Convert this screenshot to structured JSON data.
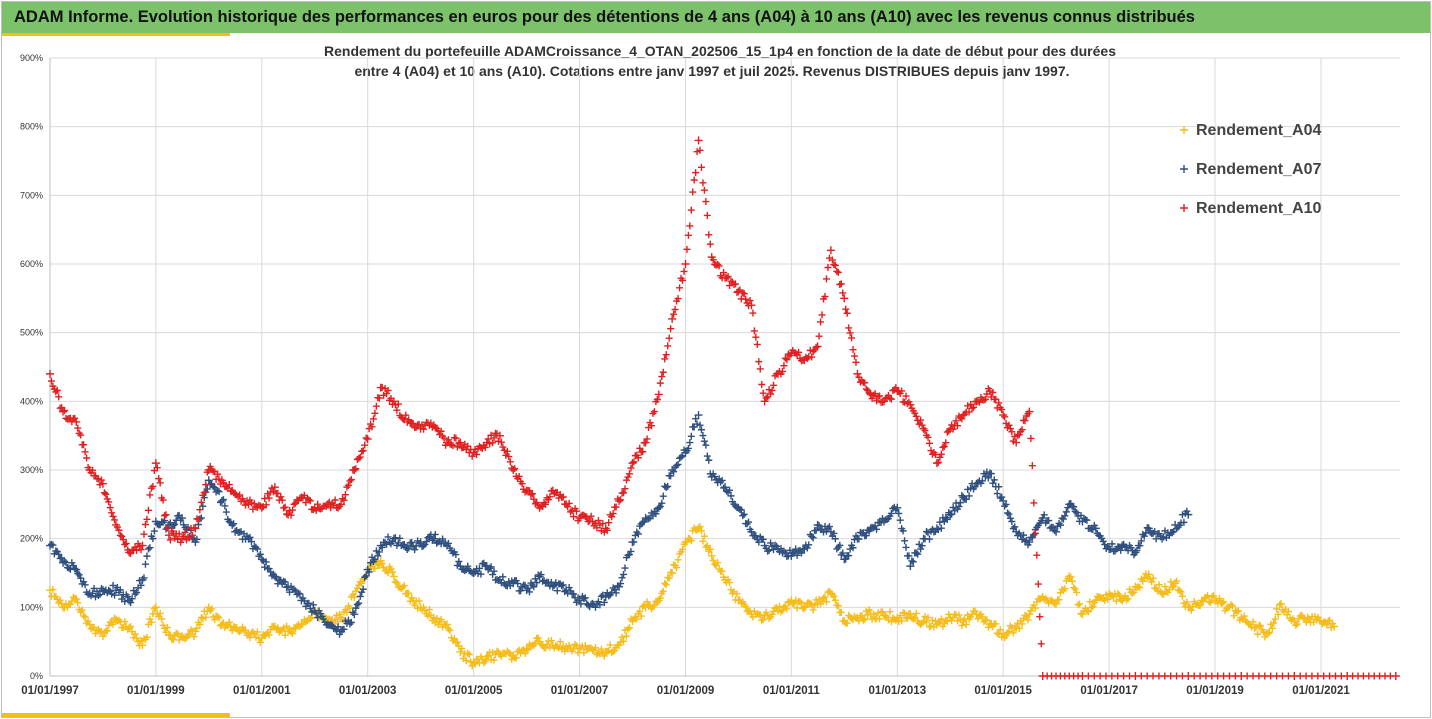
{
  "header": {
    "title": "ADAM Informe. Evolution historique des performances en euros pour des détentions de 4 ans (A04) à 10 ans (A10) avec les revenus connus distribués"
  },
  "colors": {
    "banner": "#7cc26b",
    "accent": "#f5bc1a",
    "A04": "#f5bc1a",
    "A07": "#2f4f7f",
    "A10": "#e02020"
  },
  "chart_data": {
    "type": "scatter",
    "title_line1": "Rendement du portefeuille ADAMCroissance_4_OTAN_202506_15_1p4  en fonction de la date de début pour des durées",
    "title_line2": "entre 4 (A04) et 10 ans (A10). Cotations entre janv 1997 et juil 2025. Revenus DISTRIBUES depuis janv 1997.",
    "ylim": [
      0,
      900
    ],
    "xlim": [
      "1997-01-01",
      "2022-06-30"
    ],
    "grid": true,
    "legend_position": "top-right",
    "y_ticks": [
      "0%",
      "100%",
      "200%",
      "300%",
      "400%",
      "500%",
      "600%",
      "700%",
      "800%",
      "900%"
    ],
    "x_ticks": [
      "01/01/1997",
      "01/01/1999",
      "01/01/2001",
      "01/01/2003",
      "01/01/2005",
      "01/01/2007",
      "01/01/2009",
      "01/01/2011",
      "01/01/2013",
      "01/01/2015",
      "01/01/2017",
      "01/01/2019",
      "01/01/2021"
    ],
    "series": [
      {
        "name": "Rendement_A04",
        "color": "#f5bc1a",
        "points": [
          [
            "1997-01-01",
            125
          ],
          [
            "1997-04-01",
            100
          ],
          [
            "1997-07-01",
            112
          ],
          [
            "1997-10-01",
            75
          ],
          [
            "1998-01-01",
            58
          ],
          [
            "1998-04-01",
            82
          ],
          [
            "1998-07-01",
            70
          ],
          [
            "1998-10-01",
            45
          ],
          [
            "1999-01-01",
            100
          ],
          [
            "1999-04-01",
            60
          ],
          [
            "1999-07-01",
            58
          ],
          [
            "1999-10-01",
            65
          ],
          [
            "2000-01-01",
            100
          ],
          [
            "2000-04-01",
            75
          ],
          [
            "2000-07-01",
            70
          ],
          [
            "2000-10-01",
            62
          ],
          [
            "2001-01-01",
            55
          ],
          [
            "2001-04-01",
            72
          ],
          [
            "2001-07-01",
            65
          ],
          [
            "2001-10-01",
            75
          ],
          [
            "2002-01-01",
            95
          ],
          [
            "2002-04-01",
            78
          ],
          [
            "2002-07-01",
            85
          ],
          [
            "2002-10-01",
            115
          ],
          [
            "2003-01-01",
            155
          ],
          [
            "2003-04-01",
            168
          ],
          [
            "2003-07-01",
            145
          ],
          [
            "2003-10-01",
            120
          ],
          [
            "2004-01-01",
            100
          ],
          [
            "2004-04-01",
            85
          ],
          [
            "2004-07-01",
            75
          ],
          [
            "2004-10-01",
            35
          ],
          [
            "2005-01-01",
            20
          ],
          [
            "2005-04-01",
            28
          ],
          [
            "2005-07-01",
            32
          ],
          [
            "2005-10-01",
            30
          ],
          [
            "2006-01-01",
            40
          ],
          [
            "2006-04-01",
            50
          ],
          [
            "2006-07-01",
            45
          ],
          [
            "2006-10-01",
            42
          ],
          [
            "2007-01-01",
            40
          ],
          [
            "2007-04-01",
            38
          ],
          [
            "2007-07-01",
            35
          ],
          [
            "2007-10-01",
            45
          ],
          [
            "2008-01-01",
            80
          ],
          [
            "2008-04-01",
            100
          ],
          [
            "2008-07-01",
            110
          ],
          [
            "2008-10-01",
            150
          ],
          [
            "2009-01-01",
            195
          ],
          [
            "2009-04-01",
            215
          ],
          [
            "2009-07-01",
            175
          ],
          [
            "2009-10-01",
            140
          ],
          [
            "2010-01-01",
            110
          ],
          [
            "2010-04-01",
            90
          ],
          [
            "2010-07-01",
            88
          ],
          [
            "2010-10-01",
            95
          ],
          [
            "2011-01-01",
            110
          ],
          [
            "2011-04-01",
            100
          ],
          [
            "2011-07-01",
            105
          ],
          [
            "2011-10-01",
            120
          ],
          [
            "2012-01-01",
            80
          ],
          [
            "2012-04-01",
            85
          ],
          [
            "2012-07-01",
            90
          ],
          [
            "2012-10-01",
            88
          ],
          [
            "2013-01-01",
            85
          ],
          [
            "2013-04-01",
            90
          ],
          [
            "2013-07-01",
            80
          ],
          [
            "2013-10-01",
            75
          ],
          [
            "2014-01-01",
            85
          ],
          [
            "2014-04-01",
            80
          ],
          [
            "2014-07-01",
            90
          ],
          [
            "2014-10-01",
            75
          ],
          [
            "2015-01-01",
            62
          ],
          [
            "2015-04-01",
            70
          ],
          [
            "2015-07-01",
            90
          ],
          [
            "2015-10-01",
            115
          ],
          [
            "2016-01-01",
            105
          ],
          [
            "2016-04-01",
            145
          ],
          [
            "2016-07-01",
            90
          ],
          [
            "2016-10-01",
            110
          ],
          [
            "2017-01-01",
            120
          ],
          [
            "2017-04-01",
            110
          ],
          [
            "2017-07-01",
            130
          ],
          [
            "2017-10-01",
            148
          ],
          [
            "2018-01-01",
            120
          ],
          [
            "2018-04-01",
            135
          ],
          [
            "2018-07-01",
            100
          ],
          [
            "2018-10-01",
            110
          ],
          [
            "2019-01-01",
            110
          ],
          [
            "2019-04-01",
            100
          ],
          [
            "2019-07-01",
            85
          ],
          [
            "2019-10-01",
            70
          ],
          [
            "2020-01-01",
            62
          ],
          [
            "2020-04-01",
            105
          ],
          [
            "2020-07-01",
            80
          ],
          [
            "2020-10-01",
            85
          ],
          [
            "2021-01-01",
            80
          ],
          [
            "2021-04-01",
            72
          ]
        ]
      },
      {
        "name": "Rendement_A07",
        "color": "#2f4f7f",
        "points": [
          [
            "1997-01-01",
            190
          ],
          [
            "1997-04-01",
            165
          ],
          [
            "1997-07-01",
            155
          ],
          [
            "1997-10-01",
            120
          ],
          [
            "1998-01-01",
            125
          ],
          [
            "1998-04-01",
            125
          ],
          [
            "1998-07-01",
            110
          ],
          [
            "1998-10-01",
            140
          ],
          [
            "1999-01-01",
            225
          ],
          [
            "1999-04-01",
            220
          ],
          [
            "1999-07-01",
            230
          ],
          [
            "1999-10-01",
            195
          ],
          [
            "2000-01-01",
            285
          ],
          [
            "2000-04-01",
            255
          ],
          [
            "2000-07-01",
            210
          ],
          [
            "2000-10-01",
            200
          ],
          [
            "2001-01-01",
            170
          ],
          [
            "2001-04-01",
            145
          ],
          [
            "2001-07-01",
            130
          ],
          [
            "2001-10-01",
            110
          ],
          [
            "2002-01-01",
            95
          ],
          [
            "2002-04-01",
            75
          ],
          [
            "2002-07-01",
            65
          ],
          [
            "2002-10-01",
            90
          ],
          [
            "2003-01-01",
            155
          ],
          [
            "2003-04-01",
            190
          ],
          [
            "2003-07-01",
            200
          ],
          [
            "2003-10-01",
            185
          ],
          [
            "2004-01-01",
            195
          ],
          [
            "2004-04-01",
            200
          ],
          [
            "2004-07-01",
            190
          ],
          [
            "2004-10-01",
            160
          ],
          [
            "2005-01-01",
            150
          ],
          [
            "2005-04-01",
            160
          ],
          [
            "2005-07-01",
            140
          ],
          [
            "2005-10-01",
            135
          ],
          [
            "2006-01-01",
            125
          ],
          [
            "2006-04-01",
            145
          ],
          [
            "2006-07-01",
            130
          ],
          [
            "2006-10-01",
            125
          ],
          [
            "2007-01-01",
            110
          ],
          [
            "2007-04-01",
            105
          ],
          [
            "2007-07-01",
            115
          ],
          [
            "2007-10-01",
            130
          ],
          [
            "2008-01-01",
            195
          ],
          [
            "2008-04-01",
            230
          ],
          [
            "2008-07-01",
            245
          ],
          [
            "2008-10-01",
            300
          ],
          [
            "2009-01-01",
            325
          ],
          [
            "2009-04-01",
            380
          ],
          [
            "2009-07-01",
            290
          ],
          [
            "2009-10-01",
            275
          ],
          [
            "2010-01-01",
            245
          ],
          [
            "2010-04-01",
            210
          ],
          [
            "2010-07-01",
            190
          ],
          [
            "2010-10-01",
            185
          ],
          [
            "2011-01-01",
            175
          ],
          [
            "2011-04-01",
            185
          ],
          [
            "2011-07-01",
            220
          ],
          [
            "2011-10-01",
            210
          ],
          [
            "2012-01-01",
            170
          ],
          [
            "2012-04-01",
            200
          ],
          [
            "2012-07-01",
            215
          ],
          [
            "2012-10-01",
            225
          ],
          [
            "2013-01-01",
            245
          ],
          [
            "2013-04-01",
            160
          ],
          [
            "2013-07-01",
            200
          ],
          [
            "2013-10-01",
            215
          ],
          [
            "2014-01-01",
            235
          ],
          [
            "2014-04-01",
            260
          ],
          [
            "2014-07-01",
            280
          ],
          [
            "2014-10-01",
            295
          ],
          [
            "2015-01-01",
            255
          ],
          [
            "2015-04-01",
            210
          ],
          [
            "2015-07-01",
            195
          ],
          [
            "2015-10-01",
            230
          ],
          [
            "2016-01-01",
            210
          ],
          [
            "2016-04-01",
            250
          ],
          [
            "2016-07-01",
            225
          ],
          [
            "2016-10-01",
            215
          ],
          [
            "2017-01-01",
            185
          ],
          [
            "2017-04-01",
            190
          ],
          [
            "2017-07-01",
            180
          ],
          [
            "2017-10-01",
            215
          ],
          [
            "2018-01-01",
            200
          ],
          [
            "2018-04-01",
            220
          ],
          [
            "2018-07-01",
            235
          ]
        ]
      },
      {
        "name": "Rendement_A10",
        "color": "#e02020",
        "points": [
          [
            "1997-01-01",
            440
          ],
          [
            "1997-04-01",
            385
          ],
          [
            "1997-07-01",
            370
          ],
          [
            "1997-10-01",
            300
          ],
          [
            "1998-01-01",
            280
          ],
          [
            "1998-04-01",
            220
          ],
          [
            "1998-07-01",
            180
          ],
          [
            "1998-10-01",
            190
          ],
          [
            "1999-01-01",
            310
          ],
          [
            "1999-04-01",
            205
          ],
          [
            "1999-07-01",
            200
          ],
          [
            "1999-10-01",
            215
          ],
          [
            "2000-01-01",
            300
          ],
          [
            "2000-04-01",
            285
          ],
          [
            "2000-07-01",
            265
          ],
          [
            "2000-10-01",
            250
          ],
          [
            "2001-01-01",
            245
          ],
          [
            "2001-04-01",
            275
          ],
          [
            "2001-07-01",
            235
          ],
          [
            "2001-10-01",
            260
          ],
          [
            "2002-01-01",
            245
          ],
          [
            "2002-04-01",
            250
          ],
          [
            "2002-07-01",
            250
          ],
          [
            "2002-10-01",
            300
          ],
          [
            "2003-01-01",
            345
          ],
          [
            "2003-04-01",
            420
          ],
          [
            "2003-07-01",
            400
          ],
          [
            "2003-10-01",
            370
          ],
          [
            "2004-01-01",
            360
          ],
          [
            "2004-04-01",
            365
          ],
          [
            "2004-07-01",
            340
          ],
          [
            "2004-10-01",
            340
          ],
          [
            "2005-01-01",
            325
          ],
          [
            "2005-04-01",
            340
          ],
          [
            "2005-07-01",
            350
          ],
          [
            "2005-10-01",
            300
          ],
          [
            "2006-01-01",
            270
          ],
          [
            "2006-04-01",
            245
          ],
          [
            "2006-07-01",
            270
          ],
          [
            "2006-10-01",
            250
          ],
          [
            "2007-01-01",
            230
          ],
          [
            "2007-04-01",
            225
          ],
          [
            "2007-07-01",
            215
          ],
          [
            "2007-10-01",
            255
          ],
          [
            "2008-01-01",
            310
          ],
          [
            "2008-04-01",
            340
          ],
          [
            "2008-07-01",
            410
          ],
          [
            "2008-10-01",
            520
          ],
          [
            "2009-01-01",
            600
          ],
          [
            "2009-04-01",
            780
          ],
          [
            "2009-07-01",
            610
          ],
          [
            "2009-10-01",
            580
          ],
          [
            "2010-01-01",
            560
          ],
          [
            "2010-04-01",
            540
          ],
          [
            "2010-07-01",
            400
          ],
          [
            "2010-10-01",
            440
          ],
          [
            "2011-01-01",
            470
          ],
          [
            "2011-04-01",
            460
          ],
          [
            "2011-07-01",
            480
          ],
          [
            "2011-10-01",
            620
          ],
          [
            "2012-01-01",
            550
          ],
          [
            "2012-04-01",
            440
          ],
          [
            "2012-07-01",
            410
          ],
          [
            "2012-10-01",
            400
          ],
          [
            "2013-01-01",
            415
          ],
          [
            "2013-04-01",
            395
          ],
          [
            "2013-07-01",
            360
          ],
          [
            "2013-10-01",
            310
          ],
          [
            "2014-01-01",
            360
          ],
          [
            "2014-04-01",
            380
          ],
          [
            "2014-07-01",
            400
          ],
          [
            "2014-10-01",
            415
          ],
          [
            "2015-01-01",
            380
          ],
          [
            "2015-04-01",
            340
          ],
          [
            "2015-07-01",
            385
          ],
          [
            "2015-10-01",
            0
          ],
          [
            "2016-07-01",
            0
          ],
          [
            "2017-07-01",
            0
          ],
          [
            "2018-07-01",
            0
          ],
          [
            "2019-07-01",
            0
          ],
          [
            "2020-07-01",
            0
          ],
          [
            "2021-07-01",
            0
          ],
          [
            "2022-06-01",
            0
          ]
        ]
      }
    ]
  }
}
